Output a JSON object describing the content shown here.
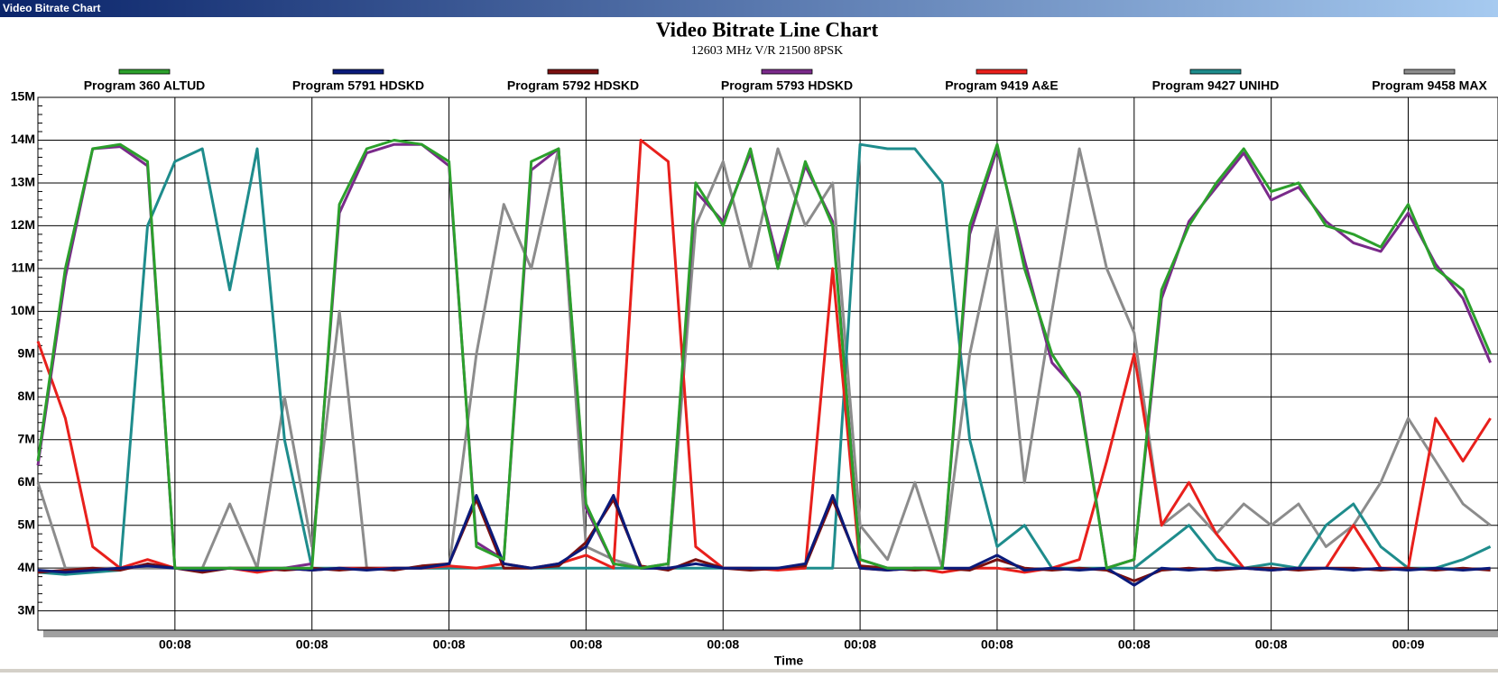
{
  "window_title": "Video Bitrate Chart",
  "chart_data": {
    "type": "line",
    "title": "Video Bitrate Line Chart",
    "subtitle": "12603 MHz V/R 21500 8PSK",
    "x_label": "Time",
    "categories": [
      null,
      null,
      null,
      null,
      null,
      "00:08",
      null,
      null,
      null,
      null,
      "00:08",
      null,
      null,
      null,
      null,
      "00:08",
      null,
      null,
      null,
      null,
      "00:08",
      null,
      null,
      null,
      null,
      "00:08",
      null,
      null,
      null,
      null,
      "00:08",
      null,
      null,
      null,
      null,
      "00:08",
      null,
      null,
      null,
      null,
      "00:08",
      null,
      null,
      null,
      null,
      "00:08",
      null,
      null,
      null,
      null,
      "00:09",
      null,
      null,
      null
    ],
    "ylim": [
      2.55,
      15
    ],
    "yticks": [
      {
        "value": 3,
        "label": "3M"
      },
      {
        "value": 4,
        "label": "4M"
      },
      {
        "value": 5,
        "label": "5M"
      },
      {
        "value": 6,
        "label": "6M"
      },
      {
        "value": 7,
        "label": "7M"
      },
      {
        "value": 8,
        "label": "8M"
      },
      {
        "value": 9,
        "label": "9M"
      },
      {
        "value": 10,
        "label": "10M"
      },
      {
        "value": 11,
        "label": "11M"
      },
      {
        "value": 12,
        "label": "12M"
      },
      {
        "value": 13,
        "label": "13M"
      },
      {
        "value": 14,
        "label": "14M"
      },
      {
        "value": 15,
        "label": "15M"
      }
    ],
    "grid": true,
    "series": [
      {
        "name": "Program 360 ALTUD",
        "color": "#2ca02c",
        "values": [
          6.5,
          11,
          13.8,
          13.9,
          13.5,
          4.0,
          4.0,
          4.0,
          4.0,
          4.0,
          4.0,
          12.5,
          13.8,
          14,
          13.9,
          13.5,
          4.5,
          4.2,
          13.5,
          13.8,
          5.5,
          4.1,
          4.0,
          4.1,
          13,
          12,
          13.8,
          11,
          13.5,
          12,
          4.2,
          4.0,
          4.0,
          4.0,
          12,
          13.9,
          11,
          9,
          8,
          4.0,
          4.2,
          10.5,
          12,
          13,
          13.8,
          12.8,
          13,
          12,
          11.8,
          11.5,
          12.5,
          11,
          10.5,
          9
        ]
      },
      {
        "name": "Program 5791 HDSKD",
        "color": "#0a1a7a",
        "values": [
          3.95,
          3.9,
          3.95,
          4.0,
          4.05,
          4.0,
          3.95,
          4.0,
          3.95,
          4.0,
          3.95,
          4.0,
          3.95,
          4.0,
          4.0,
          4.1,
          5.7,
          4.1,
          4.0,
          4.1,
          4.5,
          5.7,
          4.0,
          4.0,
          4.1,
          4.0,
          4.0,
          4.0,
          4.1,
          5.7,
          4.0,
          3.95,
          4.0,
          4.0,
          4.0,
          4.3,
          3.95,
          4.0,
          3.95,
          4.0,
          3.6,
          4.0,
          3.95,
          4.0,
          4.0,
          3.95,
          4.0,
          4.0,
          3.95,
          4.0,
          3.95,
          4.0,
          3.95,
          4.0
        ]
      },
      {
        "name": "Program 5792 HDSKD",
        "color": "#7a1010",
        "values": [
          3.9,
          3.95,
          4.0,
          3.95,
          4.1,
          4.0,
          3.9,
          4.0,
          4.0,
          3.95,
          4.0,
          3.95,
          4.0,
          3.95,
          4.05,
          4.1,
          5.6,
          4.0,
          4.0,
          4.05,
          4.6,
          5.6,
          4.05,
          3.95,
          4.2,
          4.0,
          3.95,
          4.0,
          4.05,
          5.6,
          4.05,
          4.0,
          3.95,
          4.0,
          3.95,
          4.2,
          4.0,
          3.95,
          4.0,
          3.95,
          3.7,
          3.95,
          4.0,
          3.95,
          4.0,
          4.0,
          3.95,
          4.0,
          4.0,
          3.95,
          4.0,
          3.95,
          4.0,
          3.95
        ]
      },
      {
        "name": "Program 5793 HDSKD",
        "color": "#7a2a8a",
        "values": [
          6.4,
          10.8,
          13.8,
          13.85,
          13.4,
          4.0,
          4.0,
          4.0,
          4.0,
          4.0,
          4.1,
          12.3,
          13.7,
          13.9,
          13.9,
          13.4,
          4.6,
          4.2,
          13.3,
          13.8,
          5.4,
          4.1,
          4.0,
          4.1,
          12.8,
          12.1,
          13.7,
          11.2,
          13.4,
          12.1,
          4.2,
          4.0,
          4.0,
          4.0,
          11.8,
          13.8,
          11.2,
          8.8,
          8.1,
          4.0,
          4.2,
          10.3,
          12.1,
          12.9,
          13.7,
          12.6,
          12.9,
          12.1,
          11.6,
          11.4,
          12.3,
          11.1,
          10.3,
          8.8
        ]
      },
      {
        "name": "Program 9419 A&E",
        "color": "#e8201c",
        "values": [
          9.3,
          7.5,
          4.5,
          4.0,
          4.2,
          4.0,
          3.95,
          4.0,
          3.9,
          4.0,
          3.95,
          4.0,
          4.0,
          4.0,
          4.0,
          4.05,
          4.0,
          4.1,
          4.0,
          4.1,
          4.3,
          4.0,
          14,
          13.5,
          4.5,
          4.0,
          4.0,
          3.95,
          4.0,
          11,
          4.0,
          3.95,
          4.0,
          3.9,
          4.0,
          4.0,
          3.9,
          4.0,
          4.2,
          6.5,
          9,
          5,
          6,
          4.8,
          4.0,
          3.95,
          4.0,
          4.0,
          5,
          4.0,
          4.0,
          7.5,
          6.5,
          7.5
        ]
      },
      {
        "name": "Program 9427 UNIHD",
        "color": "#1e8c8c",
        "values": [
          3.9,
          3.85,
          3.9,
          3.95,
          12,
          13.5,
          13.8,
          10.5,
          13.8,
          7,
          4.0,
          4.0,
          4.0,
          4.0,
          4.0,
          4.0,
          4.0,
          4.0,
          4.0,
          4.0,
          4.0,
          4.0,
          4.0,
          4.0,
          4.0,
          4.0,
          4.0,
          4.0,
          4.0,
          4.0,
          13.9,
          13.8,
          13.8,
          13,
          7,
          4.5,
          5,
          4.0,
          4.0,
          4.0,
          4.0,
          4.5,
          5,
          4.2,
          4.0,
          4.1,
          4.0,
          5,
          5.5,
          4.5,
          4.0,
          4.0,
          4.2,
          4.5
        ]
      },
      {
        "name": "Program 9458 MAX",
        "color": "#8c8c8c",
        "values": [
          6,
          4.0,
          4.0,
          4.0,
          4.0,
          4.0,
          4.0,
          5.5,
          4.0,
          8,
          4.5,
          10,
          4.0,
          4.0,
          4.0,
          4.0,
          9,
          12.5,
          11,
          13.8,
          4.5,
          4.2,
          4.0,
          4.0,
          12,
          13.5,
          11,
          13.8,
          12,
          13,
          5,
          4.2,
          6,
          4.0,
          9,
          12,
          6,
          10,
          13.8,
          11,
          9.5,
          5,
          5.5,
          4.8,
          5.5,
          5,
          5.5,
          4.5,
          5,
          6,
          7.5,
          6.5,
          5.5,
          5
        ]
      }
    ]
  }
}
